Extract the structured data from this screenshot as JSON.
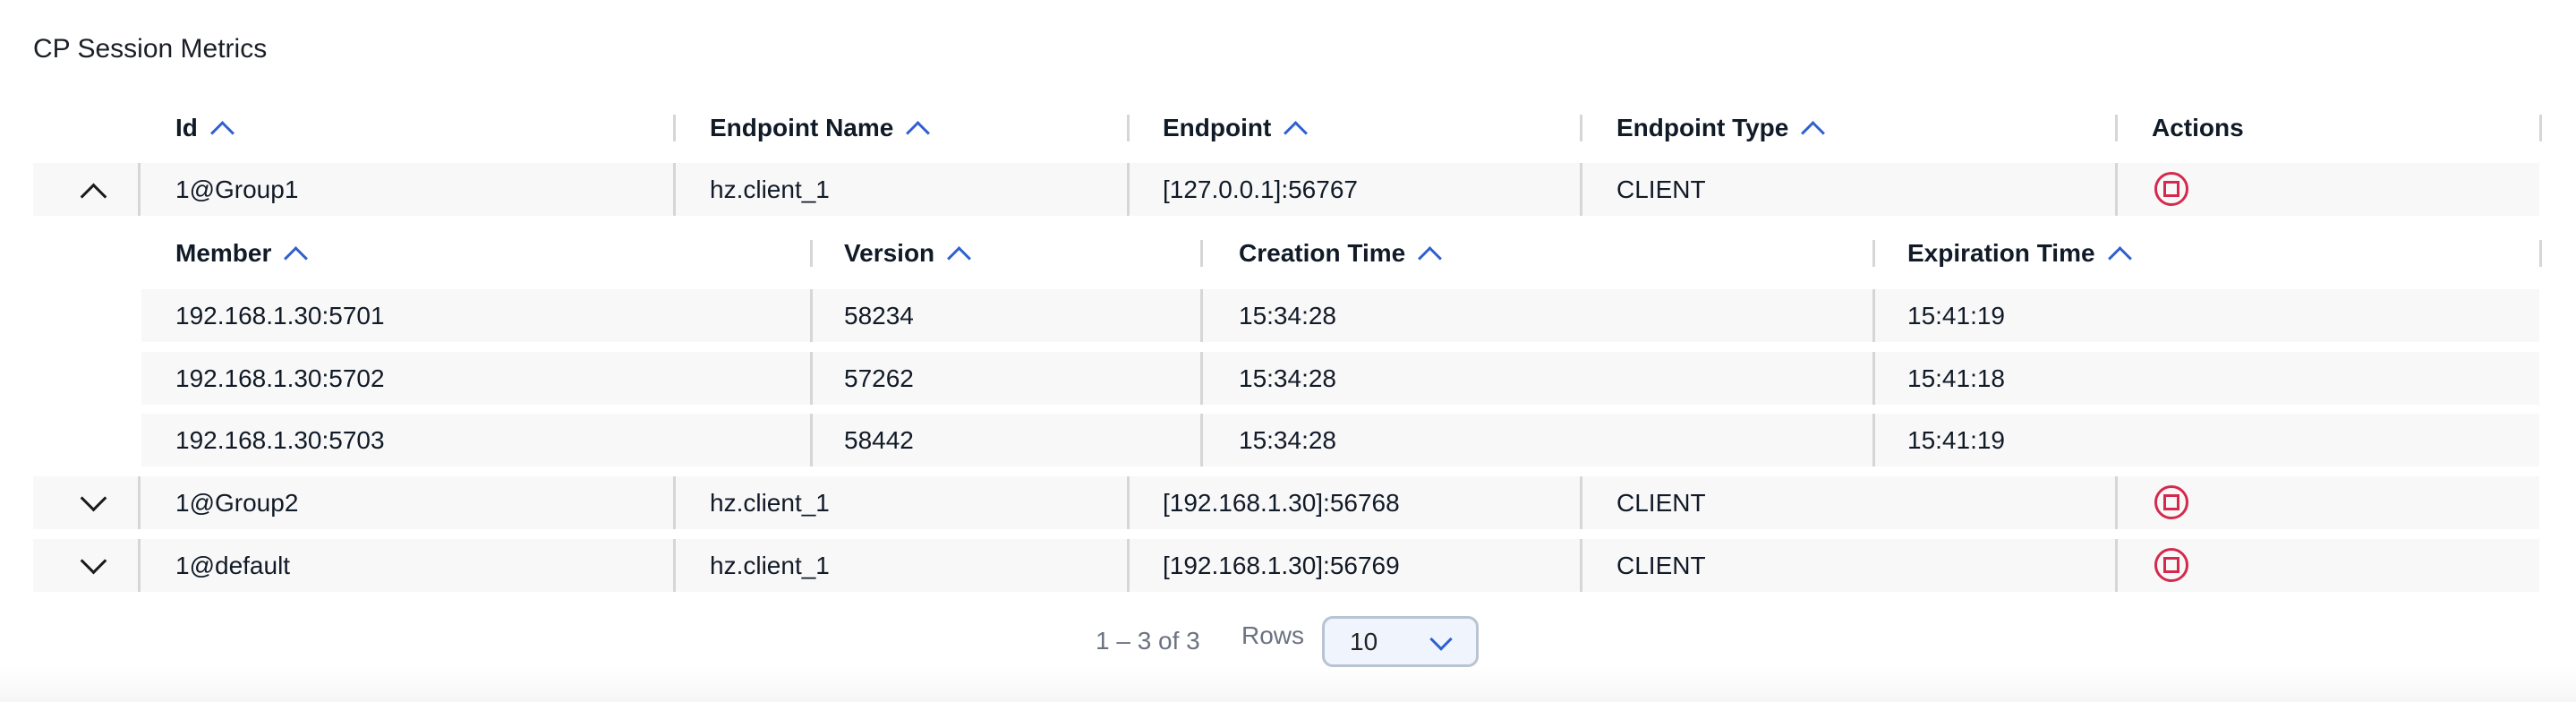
{
  "title": "CP Session Metrics",
  "columns": [
    "Id",
    "Endpoint Name",
    "Endpoint",
    "Endpoint Type",
    "Actions"
  ],
  "rows": [
    {
      "id": "1@Group1",
      "endpoint_name": "hz.client_1",
      "endpoint": "[127.0.0.1]:56767",
      "endpoint_type": "CLIENT",
      "expanded": true,
      "action_icon": "stop-icon"
    },
    {
      "id": "1@Group2",
      "endpoint_name": "hz.client_1",
      "endpoint": "[192.168.1.30]:56768",
      "endpoint_type": "CLIENT",
      "expanded": false,
      "action_icon": "stop-icon"
    },
    {
      "id": "1@default",
      "endpoint_name": "hz.client_1",
      "endpoint": "[192.168.1.30]:56769",
      "endpoint_type": "CLIENT",
      "expanded": false,
      "action_icon": "stop-icon"
    }
  ],
  "sub_columns": [
    "Member",
    "Version",
    "Creation Time",
    "Expiration Time"
  ],
  "sub_rows": [
    {
      "member": "192.168.1.30:5701",
      "version": "58234",
      "creation": "15:34:28",
      "expiration": "15:41:19"
    },
    {
      "member": "192.168.1.30:5702",
      "version": "57262",
      "creation": "15:34:28",
      "expiration": "15:41:18"
    },
    {
      "member": "192.168.1.30:5703",
      "version": "58442",
      "creation": "15:34:28",
      "expiration": "15:41:19"
    }
  ],
  "pagination": {
    "range": "1 – 3 of 3",
    "rows_label": "Rows",
    "rows_value": "10"
  },
  "colors": {
    "accent": "#2f5fd0",
    "danger": "#d4294d",
    "row_bg": "#f8f8f8"
  }
}
